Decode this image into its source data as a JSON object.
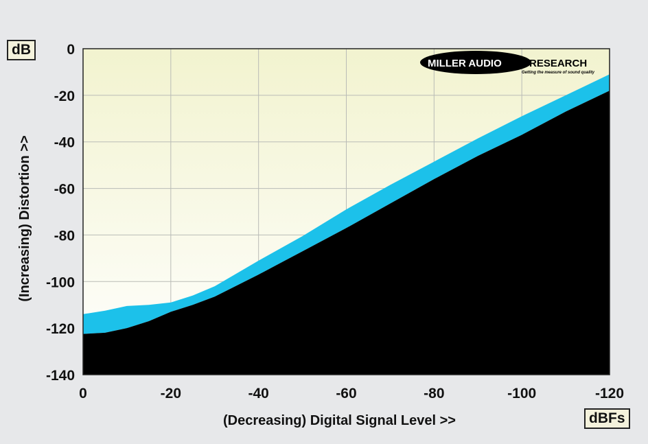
{
  "chart_data": {
    "type": "area",
    "y_unit": "dB",
    "x_unit": "dBFs",
    "xlabel": "(Decreasing) Digital Signal Level >>",
    "ylabel": "(Increasing) Distortion >>",
    "xlim": [
      0,
      -120
    ],
    "ylim": [
      -140,
      0
    ],
    "x_ticks": [
      "0",
      "-20",
      "-40",
      "-60",
      "-80",
      "-100",
      "-120"
    ],
    "y_ticks": [
      "0",
      "-20",
      "-40",
      "-60",
      "-80",
      "-100",
      "-120",
      "-140"
    ],
    "grid": true,
    "logo": {
      "text_left": "MILLER AUDIO",
      "text_right": "RESEARCH",
      "tagline": "Getting the measure of sound quality"
    },
    "colors": {
      "plot_bg_top": "#f2f3cf",
      "plot_bg_bottom": "#ffffff",
      "band": "#1cc1ea",
      "floor": "#000000",
      "page_bg": "#e7e8ea"
    },
    "series": [
      {
        "name": "band-upper",
        "x": [
          0,
          -5,
          -10,
          -15,
          -20,
          -25,
          -30,
          -40,
          -50,
          -60,
          -70,
          -80,
          -90,
          -100,
          -110,
          -120
        ],
        "values": [
          -114,
          -112.5,
          -110.5,
          -110,
          -109,
          -106,
          -102,
          -91,
          -80.5,
          -69,
          -58.5,
          -48.5,
          -38.5,
          -29,
          -20,
          -11
        ]
      },
      {
        "name": "band-lower",
        "x": [
          0,
          -5,
          -10,
          -15,
          -20,
          -25,
          -30,
          -40,
          -50,
          -60,
          -70,
          -80,
          -90,
          -100,
          -110,
          -120
        ],
        "values": [
          -122.5,
          -122,
          -120,
          -117,
          -113,
          -110,
          -106.5,
          -97,
          -87,
          -77,
          -66.5,
          -56,
          -46,
          -37,
          -27,
          -18
        ]
      }
    ]
  }
}
